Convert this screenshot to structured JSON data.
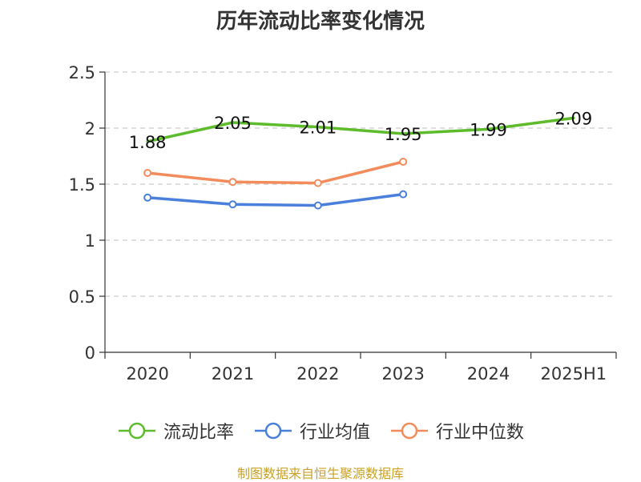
{
  "chart_data": {
    "type": "line",
    "title": "历年流动比率变化情况",
    "categories": [
      "2020",
      "2021",
      "2022",
      "2023",
      "2024",
      "2025H1"
    ],
    "ylim": [
      0,
      2.5
    ],
    "yticks": [
      "0",
      "0.5",
      "1",
      "1.5",
      "2",
      "2.5"
    ],
    "grid": true,
    "legend_position": "bottom",
    "series": [
      {
        "name": "流动比率",
        "color": "#5dbb2c",
        "values": [
          1.88,
          2.05,
          2.01,
          1.95,
          1.99,
          2.09
        ],
        "labels": [
          "1.88",
          "2.05",
          "2.01",
          "1.95",
          "1.99",
          "2.09"
        ]
      },
      {
        "name": "行业均值",
        "color": "#4a7fdb",
        "values": [
          1.38,
          1.32,
          1.31,
          1.41,
          null,
          null
        ]
      },
      {
        "name": "行业中位数",
        "color": "#f28c5c",
        "values": [
          1.6,
          1.52,
          1.51,
          1.7,
          null,
          null
        ]
      }
    ]
  },
  "footer": {
    "source": "制图数据来自恒生聚源数据库"
  }
}
